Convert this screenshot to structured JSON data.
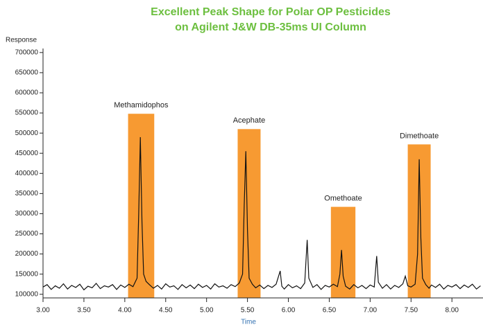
{
  "chart_data": {
    "type": "line",
    "title": "Excellent Peak Shape for Polar OP Pesticides",
    "subtitle": "on Agilent J&W DB-35ms UI Column",
    "y_label": "Response",
    "x_label": "Time",
    "color": "#111111",
    "highlight_color": "#f79a32",
    "title_color": "#6cbf3f",
    "x_label_color": "#2f6fb0",
    "xlim": [
      3.0,
      8.38
    ],
    "ylim": [
      91000,
      710000
    ],
    "xticks": [
      {
        "value": 3.0,
        "label": "3.00"
      },
      {
        "value": 3.5,
        "label": "3.50"
      },
      {
        "value": 4.0,
        "label": "4.00"
      },
      {
        "value": 4.5,
        "label": "4.50"
      },
      {
        "value": 5.0,
        "label": "5.00"
      },
      {
        "value": 5.5,
        "label": "5.50"
      },
      {
        "value": 6.0,
        "label": "6.00"
      },
      {
        "value": 6.5,
        "label": "6.50"
      },
      {
        "value": 7.0,
        "label": "7.00"
      },
      {
        "value": 7.5,
        "label": "7.50"
      },
      {
        "value": 8.0,
        "label": "8.00"
      }
    ],
    "yticks": [
      100000,
      150000,
      200000,
      250000,
      300000,
      350000,
      400000,
      450000,
      500000,
      550000,
      600000,
      650000,
      700000
    ],
    "highlights": [
      {
        "label": "Methamidophos",
        "xrange": [
          4.04,
          4.36
        ],
        "value": 548000
      },
      {
        "label": "Acephate",
        "xrange": [
          5.38,
          5.66
        ],
        "value": 510000
      },
      {
        "label": "Omethoate",
        "xrange": [
          6.52,
          6.82
        ],
        "value": 317000
      },
      {
        "label": "Dimethoate",
        "xrange": [
          7.46,
          7.74
        ],
        "value": 472000
      }
    ],
    "x": [
      3.0,
      3.05,
      3.1,
      3.15,
      3.2,
      3.25,
      3.3,
      3.35,
      3.4,
      3.45,
      3.5,
      3.55,
      3.6,
      3.65,
      3.7,
      3.75,
      3.8,
      3.85,
      3.9,
      3.95,
      4.0,
      4.05,
      4.1,
      4.15,
      4.17,
      4.19,
      4.21,
      4.23,
      4.26,
      4.3,
      4.35,
      4.4,
      4.45,
      4.5,
      4.55,
      4.6,
      4.65,
      4.7,
      4.75,
      4.8,
      4.85,
      4.9,
      4.95,
      5.0,
      5.05,
      5.1,
      5.15,
      5.2,
      5.25,
      5.3,
      5.35,
      5.4,
      5.44,
      5.46,
      5.48,
      5.5,
      5.52,
      5.56,
      5.6,
      5.65,
      5.7,
      5.75,
      5.8,
      5.85,
      5.9,
      5.92,
      5.95,
      6.0,
      6.05,
      6.1,
      6.15,
      6.2,
      6.23,
      6.25,
      6.3,
      6.35,
      6.4,
      6.45,
      6.5,
      6.55,
      6.6,
      6.63,
      6.65,
      6.67,
      6.7,
      6.75,
      6.8,
      6.85,
      6.9,
      6.95,
      7.0,
      7.05,
      7.08,
      7.1,
      7.15,
      7.2,
      7.25,
      7.3,
      7.35,
      7.4,
      7.43,
      7.46,
      7.5,
      7.55,
      7.58,
      7.6,
      7.62,
      7.64,
      7.68,
      7.72,
      7.75,
      7.8,
      7.85,
      7.9,
      7.95,
      8.0,
      8.05,
      8.1,
      8.15,
      8.2,
      8.25,
      8.3,
      8.35
    ],
    "values": [
      118000,
      124000,
      112000,
      121000,
      115000,
      126000,
      113000,
      122000,
      117000,
      125000,
      111000,
      120000,
      116000,
      127000,
      114000,
      121000,
      118000,
      124000,
      112000,
      123000,
      117000,
      125000,
      119000,
      140000,
      300000,
      490000,
      280000,
      150000,
      132000,
      124000,
      115000,
      122000,
      113000,
      126000,
      118000,
      121000,
      112000,
      124000,
      116000,
      123000,
      114000,
      125000,
      117000,
      122000,
      113000,
      126000,
      118000,
      121000,
      115000,
      124000,
      119000,
      128000,
      150000,
      320000,
      455000,
      260000,
      140000,
      125000,
      116000,
      123000,
      114000,
      122000,
      117000,
      125000,
      158000,
      120000,
      113000,
      124000,
      116000,
      121000,
      114000,
      128000,
      235000,
      140000,
      117000,
      124000,
      112000,
      122000,
      118000,
      125000,
      119000,
      150000,
      210000,
      145000,
      120000,
      113000,
      124000,
      116000,
      122000,
      114000,
      123000,
      118000,
      195000,
      130000,
      115000,
      124000,
      113000,
      122000,
      117000,
      126000,
      145000,
      121000,
      118000,
      125000,
      200000,
      435000,
      240000,
      140000,
      124000,
      115000,
      123000,
      117000,
      125000,
      113000,
      122000,
      118000,
      124000,
      114000,
      123000,
      117000,
      125000,
      113000,
      121000
    ]
  }
}
